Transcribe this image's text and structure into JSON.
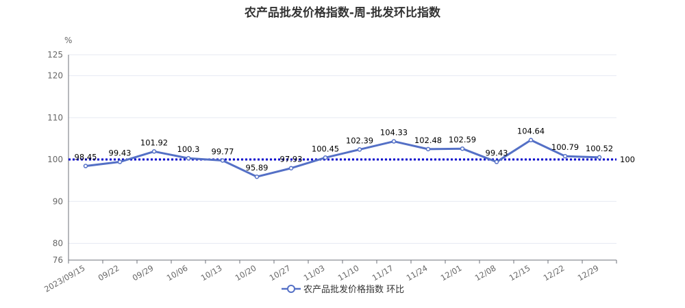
{
  "chart_data": {
    "type": "line",
    "title": "农产品批发价格指数-周-批发环比指数",
    "ylabel": "%",
    "categories": [
      "2023/09/15",
      "09/22",
      "09/29",
      "10/06",
      "10/13",
      "10/20",
      "10/27",
      "11/03",
      "11/10",
      "11/17",
      "11/24",
      "12/01",
      "12/08",
      "12/15",
      "12/22",
      "12/29"
    ],
    "series": [
      {
        "name": "农产品批发价格指数  环比",
        "values": [
          98.45,
          99.43,
          101.92,
          100.3,
          99.77,
          95.89,
          97.93,
          100.45,
          102.39,
          104.33,
          102.48,
          102.59,
          99.43,
          104.64,
          100.79,
          100.52
        ],
        "labels": [
          "98.45",
          "99.43",
          "101.92",
          "100.3",
          "99.77",
          "95.89",
          "97.93",
          "100.45",
          "102.39",
          "104.33",
          "102.48",
          "102.59",
          "99.43",
          "104.64",
          "100.79",
          "100.52"
        ]
      }
    ],
    "ylim": [
      76,
      125
    ],
    "yticks": [
      76,
      80,
      90,
      100,
      110,
      120,
      125
    ],
    "reference_line": {
      "value": 100,
      "label": "100",
      "color": "#0000cc"
    },
    "series_color": "#5470c6",
    "grid": true,
    "legend_position": "bottom"
  }
}
